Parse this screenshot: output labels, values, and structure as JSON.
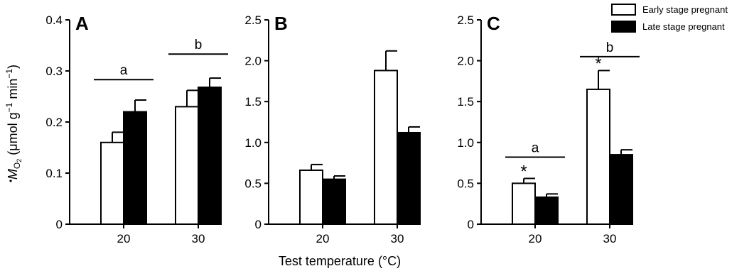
{
  "chart_data": [
    {
      "type": "bar",
      "panel": "A",
      "categories": [
        "20",
        "30"
      ],
      "series": [
        {
          "name": "Early stage pregnant",
          "values": [
            0.16,
            0.23
          ],
          "errors": [
            0.02,
            0.032
          ],
          "color": "#ffffff"
        },
        {
          "name": "Late stage pregnant",
          "values": [
            0.22,
            0.268
          ],
          "errors": [
            0.023,
            0.018
          ],
          "color": "#000000"
        }
      ],
      "ylim": [
        0,
        0.4
      ],
      "yticks": [
        "0",
        "0.1",
        "0.2",
        "0.3",
        "0.4"
      ],
      "yticks_values": [
        0,
        0.1,
        0.2,
        0.3,
        0.4
      ],
      "group_labels": [
        {
          "category": "20",
          "text": "a",
          "y": 0.283
        },
        {
          "category": "30",
          "text": "b",
          "y": 0.333
        }
      ],
      "significance": []
    },
    {
      "type": "bar",
      "panel": "B",
      "categories": [
        "20",
        "30"
      ],
      "series": [
        {
          "name": "Early stage pregnant",
          "values": [
            0.66,
            1.88
          ],
          "errors": [
            0.07,
            0.24
          ],
          "color": "#ffffff"
        },
        {
          "name": "Late stage pregnant",
          "values": [
            0.55,
            1.12
          ],
          "errors": [
            0.04,
            0.07
          ],
          "color": "#000000"
        }
      ],
      "ylim": [
        0,
        2.5
      ],
      "yticks": [
        "0",
        "0.5",
        "1.0",
        "1.5",
        "2.0",
        "2.5"
      ],
      "yticks_values": [
        0,
        0.5,
        1.0,
        1.5,
        2.0,
        2.5
      ],
      "group_labels": [],
      "significance": []
    },
    {
      "type": "bar",
      "panel": "C",
      "categories": [
        "20",
        "30"
      ],
      "series": [
        {
          "name": "Early stage pregnant",
          "values": [
            0.5,
            1.65
          ],
          "errors": [
            0.06,
            0.23
          ],
          "color": "#ffffff"
        },
        {
          "name": "Late stage pregnant",
          "values": [
            0.33,
            0.85
          ],
          "errors": [
            0.04,
            0.06
          ],
          "color": "#000000"
        }
      ],
      "ylim": [
        0,
        2.5
      ],
      "yticks": [
        "0",
        "0.5",
        "1.0",
        "1.5",
        "2.0",
        "2.5"
      ],
      "yticks_values": [
        0,
        0.5,
        1.0,
        1.5,
        2.0,
        2.5
      ],
      "group_labels": [
        {
          "category": "20",
          "text": "a",
          "y": 0.82
        },
        {
          "category": "30",
          "text": "b",
          "y": 2.05
        }
      ],
      "significance": [
        {
          "category": "20",
          "series": 0,
          "text": "*"
        },
        {
          "category": "30",
          "series": 0,
          "text": "*"
        }
      ]
    }
  ],
  "shared": {
    "xlabel": "Test temperature (°C)",
    "ylabel_prefix": "M",
    "ylabel_subscript": "O",
    "ylabel_subscript2": "2",
    "ylabel_units": " (μmol g",
    "ylabel_sup1": "−1",
    "ylabel_mid": " min",
    "ylabel_sup2": "−1",
    "ylabel_end": ")",
    "legend": [
      "Early stage pregnant",
      "Late stage pregnant"
    ],
    "legend_colors": [
      "#ffffff",
      "#000000"
    ]
  }
}
